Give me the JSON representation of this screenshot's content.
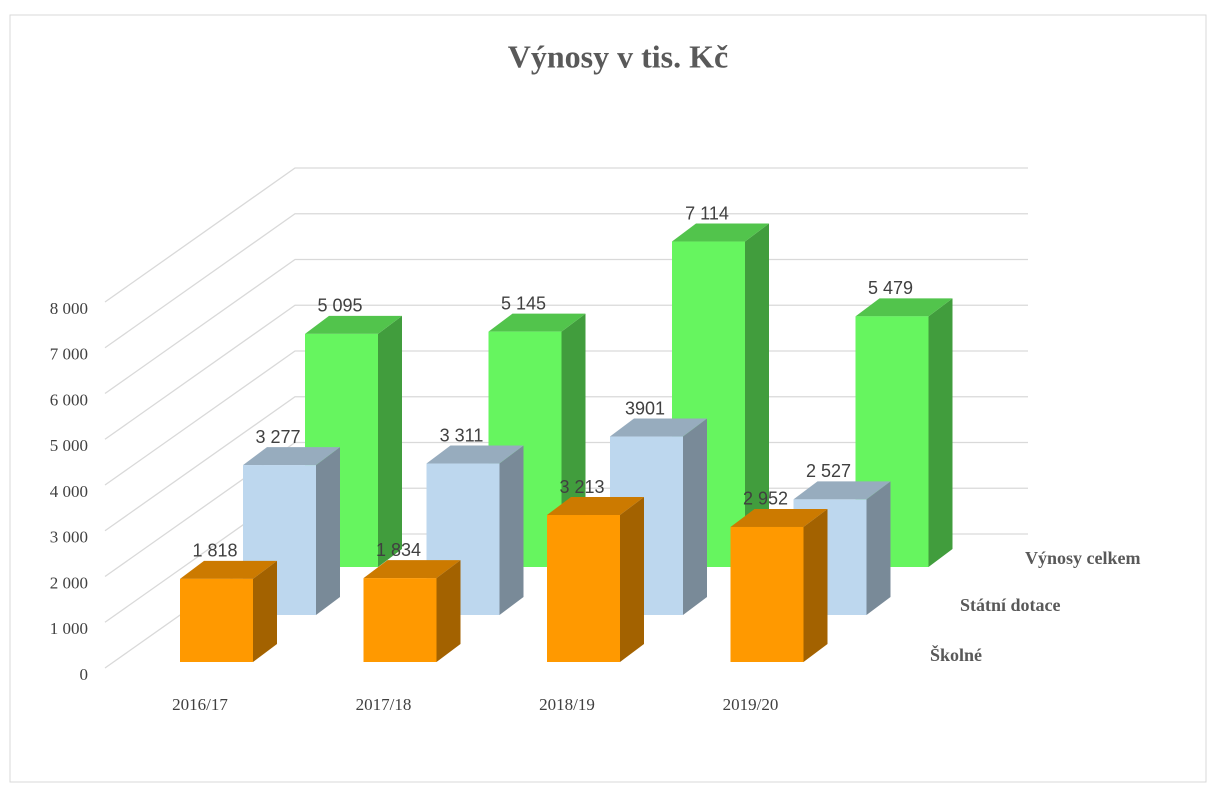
{
  "chart_data": {
    "type": "bar3d",
    "title": "Výnosy v tis. Kč",
    "categories": [
      "2016/17",
      "2017/18",
      "2018/19",
      "2019/20"
    ],
    "series": [
      {
        "name": "Školné",
        "color": "#ff9900",
        "values": [
          1818,
          1834,
          3213,
          2952
        ],
        "value_labels": [
          "1 818",
          "1 834",
          "3 213",
          "2 952"
        ]
      },
      {
        "name": "Státní dotace",
        "color": "#bdd7ee",
        "values": [
          3277,
          3311,
          3901,
          2527
        ],
        "value_labels": [
          "3 277",
          "3 311",
          "3901",
          "2 527"
        ]
      },
      {
        "name": "Výnosy celkem",
        "color": "#66f55f",
        "values": [
          5095,
          5145,
          7114,
          5479
        ],
        "value_labels": [
          "5 095",
          "5 145",
          "7 114",
          "5 479"
        ]
      }
    ],
    "ylim": [
      0,
      8000
    ],
    "yticks": [
      0,
      {
        "value": 1000,
        "label": "1 000"
      },
      {
        "value": 2000,
        "label": "2 000"
      },
      {
        "value": 3000,
        "label": "3 000"
      },
      {
        "value": 4000,
        "label": "4 000"
      },
      {
        "value": 5000,
        "label": "5 000"
      },
      {
        "value": 6000,
        "label": "6 000"
      },
      {
        "value": 7000,
        "label": "7 000"
      },
      {
        "value": 8000,
        "label": "8 000"
      }
    ],
    "grid": true
  }
}
